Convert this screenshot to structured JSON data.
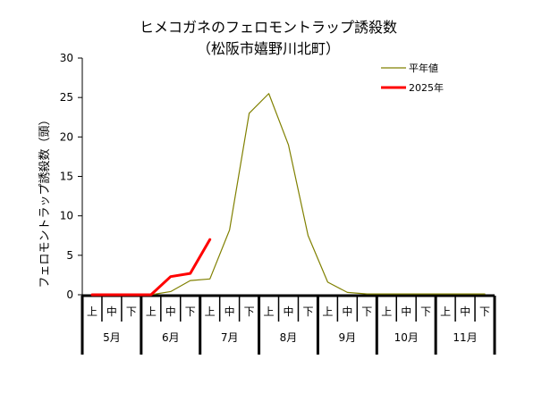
{
  "chart_data": {
    "type": "line",
    "title": "ヒメコガネのフェロモントラップ誘殺数",
    "subtitle": "（松阪市嬉野川北町）",
    "ylabel": "フェロモントラップ誘殺数（頭）",
    "ylim": [
      0,
      30
    ],
    "yticks": [
      "0",
      "5",
      "10",
      "15",
      "20",
      "25",
      "30"
    ],
    "period_labels": [
      "上",
      "中",
      "下"
    ],
    "months": [
      "5月",
      "6月",
      "7月",
      "8月",
      "9月",
      "10月",
      "11月"
    ],
    "legend_position": "top-right",
    "series": [
      {
        "name": "平年値",
        "color": "#808000",
        "values": [
          0,
          0,
          0,
          0,
          0.4,
          1.8,
          2.0,
          8.2,
          23.0,
          25.5,
          19.0,
          7.5,
          1.6,
          0.3,
          0.1,
          0.1,
          0.1,
          0.1,
          0.1,
          0.1,
          0.1
        ]
      },
      {
        "name": "2025年",
        "color": "#ff0000",
        "values": [
          0,
          0,
          0,
          0,
          2.3,
          2.7,
          7.0,
          null,
          null,
          null,
          null,
          null,
          null,
          null,
          null,
          null,
          null,
          null,
          null,
          null,
          null
        ]
      }
    ]
  }
}
